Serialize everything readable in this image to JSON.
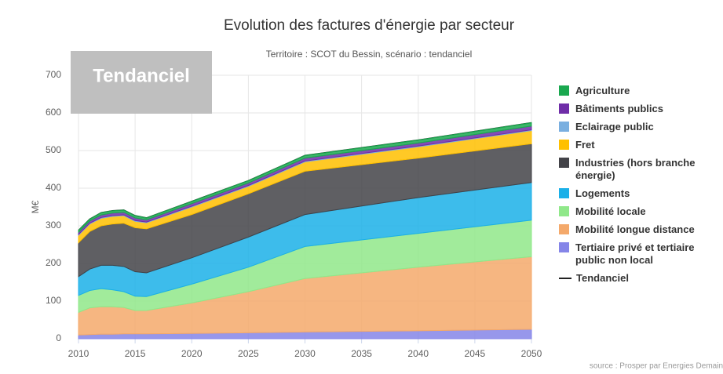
{
  "chart_data": {
    "type": "stacked-area",
    "title": "Evolution des factures d'énergie par secteur",
    "subtitle": "Territoire : SCOT du Bessin, scénario : tendanciel",
    "badge": "Tendanciel",
    "y_label": "M€",
    "source": "source : Prosper par Energies Demain",
    "x": [
      2010,
      2011,
      2012,
      2013,
      2014,
      2015,
      2016,
      2020,
      2025,
      2030,
      2040,
      2050
    ],
    "xlim": [
      2010,
      2050
    ],
    "xticks": [
      2010,
      2015,
      2020,
      2025,
      2030,
      2035,
      2040,
      2045,
      2050
    ],
    "ylim": [
      0,
      700
    ],
    "yticks": [
      0,
      100,
      200,
      300,
      400,
      500,
      600,
      700
    ],
    "grid": true,
    "series": [
      {
        "name": "Agriculture",
        "color": "#1aa84f",
        "values": [
          5,
          5,
          6,
          6,
          6,
          6,
          5,
          6,
          6,
          7,
          8,
          9
        ]
      },
      {
        "name": "Bâtiments publics",
        "color": "#6f2da8",
        "values": [
          6,
          6,
          7,
          7,
          7,
          7,
          6,
          7,
          7,
          8,
          8,
          10
        ]
      },
      {
        "name": "Eclairage public",
        "color": "#7aafe0",
        "values": [
          2,
          2,
          2,
          2,
          2,
          2,
          2,
          2,
          2,
          2,
          2,
          2
        ]
      },
      {
        "name": "Fret",
        "color": "#ffc000",
        "values": [
          20,
          20,
          20,
          20,
          20,
          17,
          16,
          20,
          20,
          25,
          30,
          35
        ]
      },
      {
        "name": "Industries (hors branche énergie)",
        "color": "#434348",
        "values": [
          90,
          100,
          105,
          110,
          115,
          117,
          117,
          115,
          115,
          115,
          105,
          103
        ]
      },
      {
        "name": "Logements",
        "color": "#1bb0e8",
        "values": [
          50,
          57,
          62,
          65,
          67,
          65,
          63,
          70,
          80,
          85,
          95,
          100
        ]
      },
      {
        "name": "Mobilité locale",
        "color": "#90e88a",
        "values": [
          45,
          46,
          48,
          45,
          42,
          38,
          37,
          50,
          65,
          85,
          90,
          97
        ]
      },
      {
        "name": "Mobilité longue distance",
        "color": "#f4a96b",
        "values": [
          60,
          71,
          73,
          73,
          70,
          62,
          62,
          81,
          109,
          142,
          169,
          193
        ]
      },
      {
        "name": "Tertiaire privé et tertiaire public non local",
        "color": "#8585e8",
        "values": [
          10,
          11,
          12,
          12,
          13,
          13,
          13,
          14,
          16,
          18,
          21,
          25
        ]
      },
      {
        "name": "Tendanciel",
        "color": "#222222",
        "type": "line",
        "values": [
          288,
          318,
          335,
          340,
          342,
          327,
          321,
          365,
          420,
          487,
          528,
          574
        ]
      }
    ]
  }
}
